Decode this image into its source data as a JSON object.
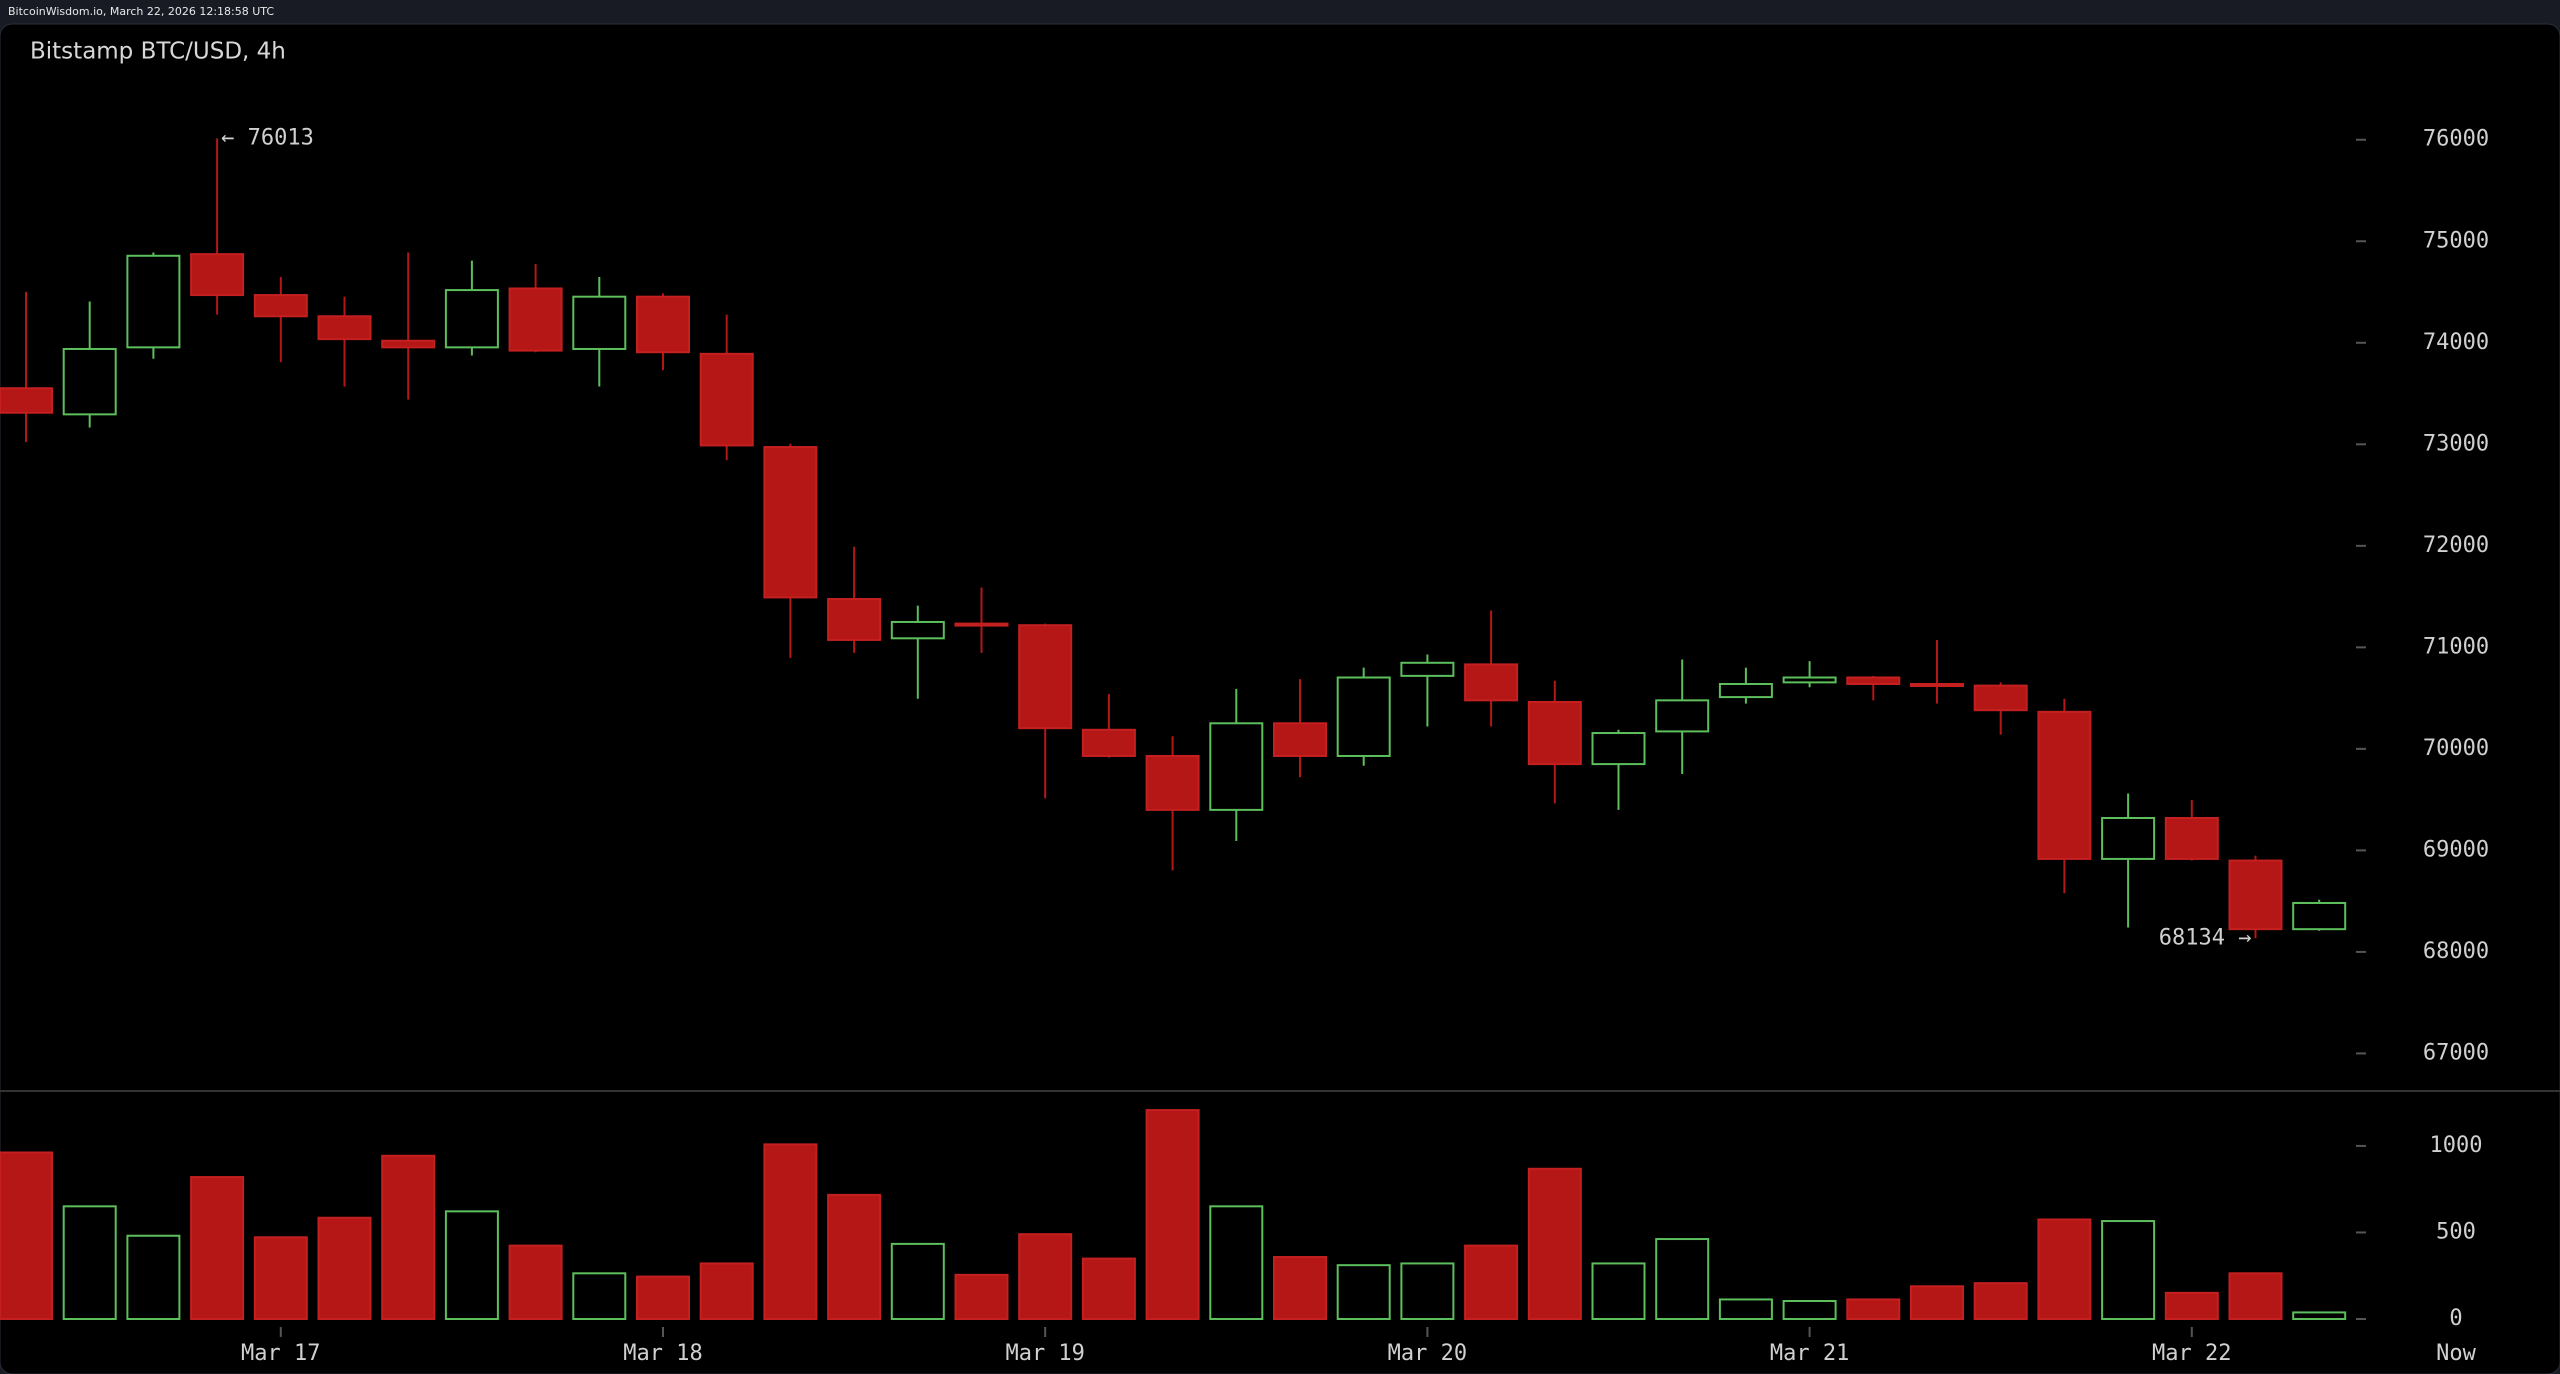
{
  "header": {
    "text": "BitcoinWisdom.io, March 22, 2026 12:18:58 UTC"
  },
  "chart_data": {
    "type": "candlestick",
    "title": "Bitstamp BTC/USD, 4h",
    "categories": [
      null,
      null,
      null,
      null,
      "Mar 17",
      null,
      null,
      null,
      null,
      null,
      "Mar 18",
      null,
      null,
      null,
      null,
      null,
      "Mar 19",
      null,
      null,
      null,
      null,
      null,
      "Mar 20",
      null,
      null,
      null,
      null,
      null,
      "Mar 21",
      null,
      null,
      null,
      null,
      null,
      "Mar 22",
      null,
      null
    ],
    "now_label": "Now",
    "open": [
      73552,
      73295,
      73955,
      74873,
      74470,
      74261,
      74020,
      73955,
      74535,
      73939,
      74454,
      73891,
      72973,
      71476,
      71089,
      71234,
      71218,
      70188,
      69930,
      69399,
      70252,
      69930,
      70719,
      70832,
      70462,
      69850,
      70172,
      70510,
      70655,
      70703,
      70639,
      70623,
      70365,
      68916,
      69319,
      68900,
      68224
    ],
    "high": [
      74502,
      74406,
      74889,
      76013,
      74648,
      74454,
      74889,
      74809,
      74776,
      74648,
      74487,
      74277,
      73005,
      71991,
      71411,
      71589,
      71234,
      70542,
      70124,
      70591,
      70687,
      70800,
      70929,
      71363,
      70671,
      70188,
      70880,
      70800,
      70864,
      70719,
      71073,
      70655,
      70494,
      69560,
      69496,
      68948,
      68514
    ],
    "low": [
      73021,
      73166,
      73843,
      74277,
      73810,
      73569,
      73440,
      73875,
      73907,
      73569,
      73730,
      72844,
      70896,
      70945,
      70494,
      70945,
      69512,
      69914,
      68803,
      69093,
      69721,
      69834,
      70220,
      70220,
      69463,
      69399,
      69753,
      70446,
      70607,
      70478,
      70446,
      70140,
      68578,
      68240,
      68900,
      68134,
      68208
    ],
    "close": [
      73311,
      73939,
      74857,
      74470,
      74261,
      74036,
      73955,
      74519,
      73923,
      74454,
      73907,
      72989,
      71492,
      71073,
      71250,
      71218,
      70204,
      69930,
      69399,
      70252,
      69930,
      70703,
      70848,
      70478,
      69850,
      70156,
      70478,
      70639,
      70703,
      70639,
      70623,
      70381,
      68916,
      69319,
      68916,
      68224,
      68482
    ],
    "volume": [
      962,
      651,
      481,
      820,
      472,
      585,
      943,
      622,
      424,
      264,
      245,
      321,
      1009,
      717,
      434,
      255,
      490,
      349,
      1207,
      651,
      358,
      311,
      321,
      424,
      868,
      321,
      462,
      113,
      104,
      113,
      189,
      207,
      575,
      566,
      151,
      264,
      38
    ],
    "up_color": "#5cbf5c",
    "down_color": "#b51616",
    "ylim": [
      66630,
      77140
    ],
    "yticks": [
      67000,
      68000,
      69000,
      70000,
      71000,
      72000,
      73000,
      74000,
      75000,
      76000
    ],
    "volume_ylim": [
      0,
      1300
    ],
    "volume_ticks": [
      0,
      500,
      1000
    ],
    "annotations": [
      {
        "text": "← 76013",
        "index": 3,
        "value": 76013,
        "side": "right"
      },
      {
        "text": "68134 →",
        "index": 35,
        "value": 68134,
        "side": "left"
      }
    ]
  }
}
